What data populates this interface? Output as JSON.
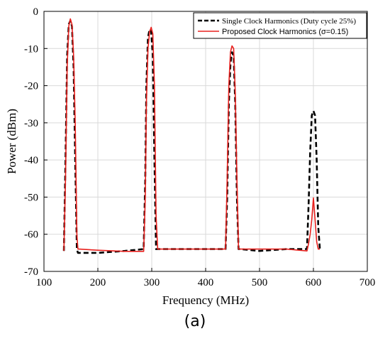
{
  "chart_data": {
    "type": "line",
    "xlabel": "Frequency (MHz)",
    "ylabel": "Power (dBm)",
    "xlim": [
      100,
      700
    ],
    "ylim": [
      -70,
      0
    ],
    "xticks": [
      100,
      200,
      300,
      400,
      500,
      600,
      700
    ],
    "yticks": [
      0,
      -10,
      -20,
      -30,
      -40,
      -50,
      -60,
      -70
    ],
    "grid": true,
    "legend_position": "top-right",
    "series": [
      {
        "name": "Single Clock  Harmonics (Duty cycle 25%)",
        "color": "#000000",
        "dash": "dashed",
        "x": [
          137,
          140,
          143,
          146,
          149,
          152,
          155,
          158,
          161,
          163,
          165,
          200,
          250,
          285,
          288,
          290,
          293,
          296,
          299,
          302,
          305,
          308,
          311,
          313,
          350,
          400,
          437,
          440,
          443,
          446,
          449,
          452,
          455,
          458,
          461,
          464,
          500,
          550,
          588,
          591,
          594,
          597,
          600,
          603,
          606,
          609,
          612
        ],
        "values": [
          -64.5,
          -40,
          -12,
          -3.5,
          -2.5,
          -4,
          -15,
          -40,
          -64,
          -65,
          -65,
          -65,
          -64.5,
          -64,
          -45,
          -20,
          -7,
          -4.8,
          -5.5,
          -12,
          -40,
          -64,
          -64,
          -64,
          -64,
          -64,
          -64,
          -50,
          -25,
          -14,
          -11,
          -12,
          -25,
          -50,
          -64,
          -64,
          -64.5,
          -64,
          -64,
          -52,
          -38,
          -28,
          -26.8,
          -28,
          -40,
          -58,
          -64
        ]
      },
      {
        "name": "Proposed Clock Harmonics (σ=0.15)",
        "color": "#e8211e",
        "dash": "solid",
        "x": [
          137,
          140,
          143,
          146,
          149,
          152,
          155,
          158,
          161,
          163,
          165,
          200,
          250,
          285,
          288,
          290,
          293,
          296,
          299,
          302,
          305,
          308,
          311,
          313,
          350,
          400,
          437,
          440,
          443,
          446,
          449,
          452,
          455,
          458,
          461,
          464,
          500,
          550,
          588,
          591,
          594,
          597,
          600,
          603,
          606,
          609,
          612
        ],
        "values": [
          -64.5,
          -45,
          -15,
          -4,
          -2,
          -3.5,
          -12,
          -30,
          -60,
          -64,
          -64,
          -64.3,
          -64.6,
          -64.6,
          -50,
          -25,
          -10,
          -5.5,
          -4.3,
          -6,
          -20,
          -55,
          -64,
          -64,
          -64,
          -64,
          -64,
          -45,
          -20,
          -11,
          -9.3,
          -10,
          -22,
          -45,
          -64,
          -64,
          -64,
          -64,
          -64.5,
          -62.5,
          -60,
          -56,
          -50.2,
          -56,
          -62,
          -64,
          -64
        ]
      }
    ]
  },
  "caption": "(a)"
}
